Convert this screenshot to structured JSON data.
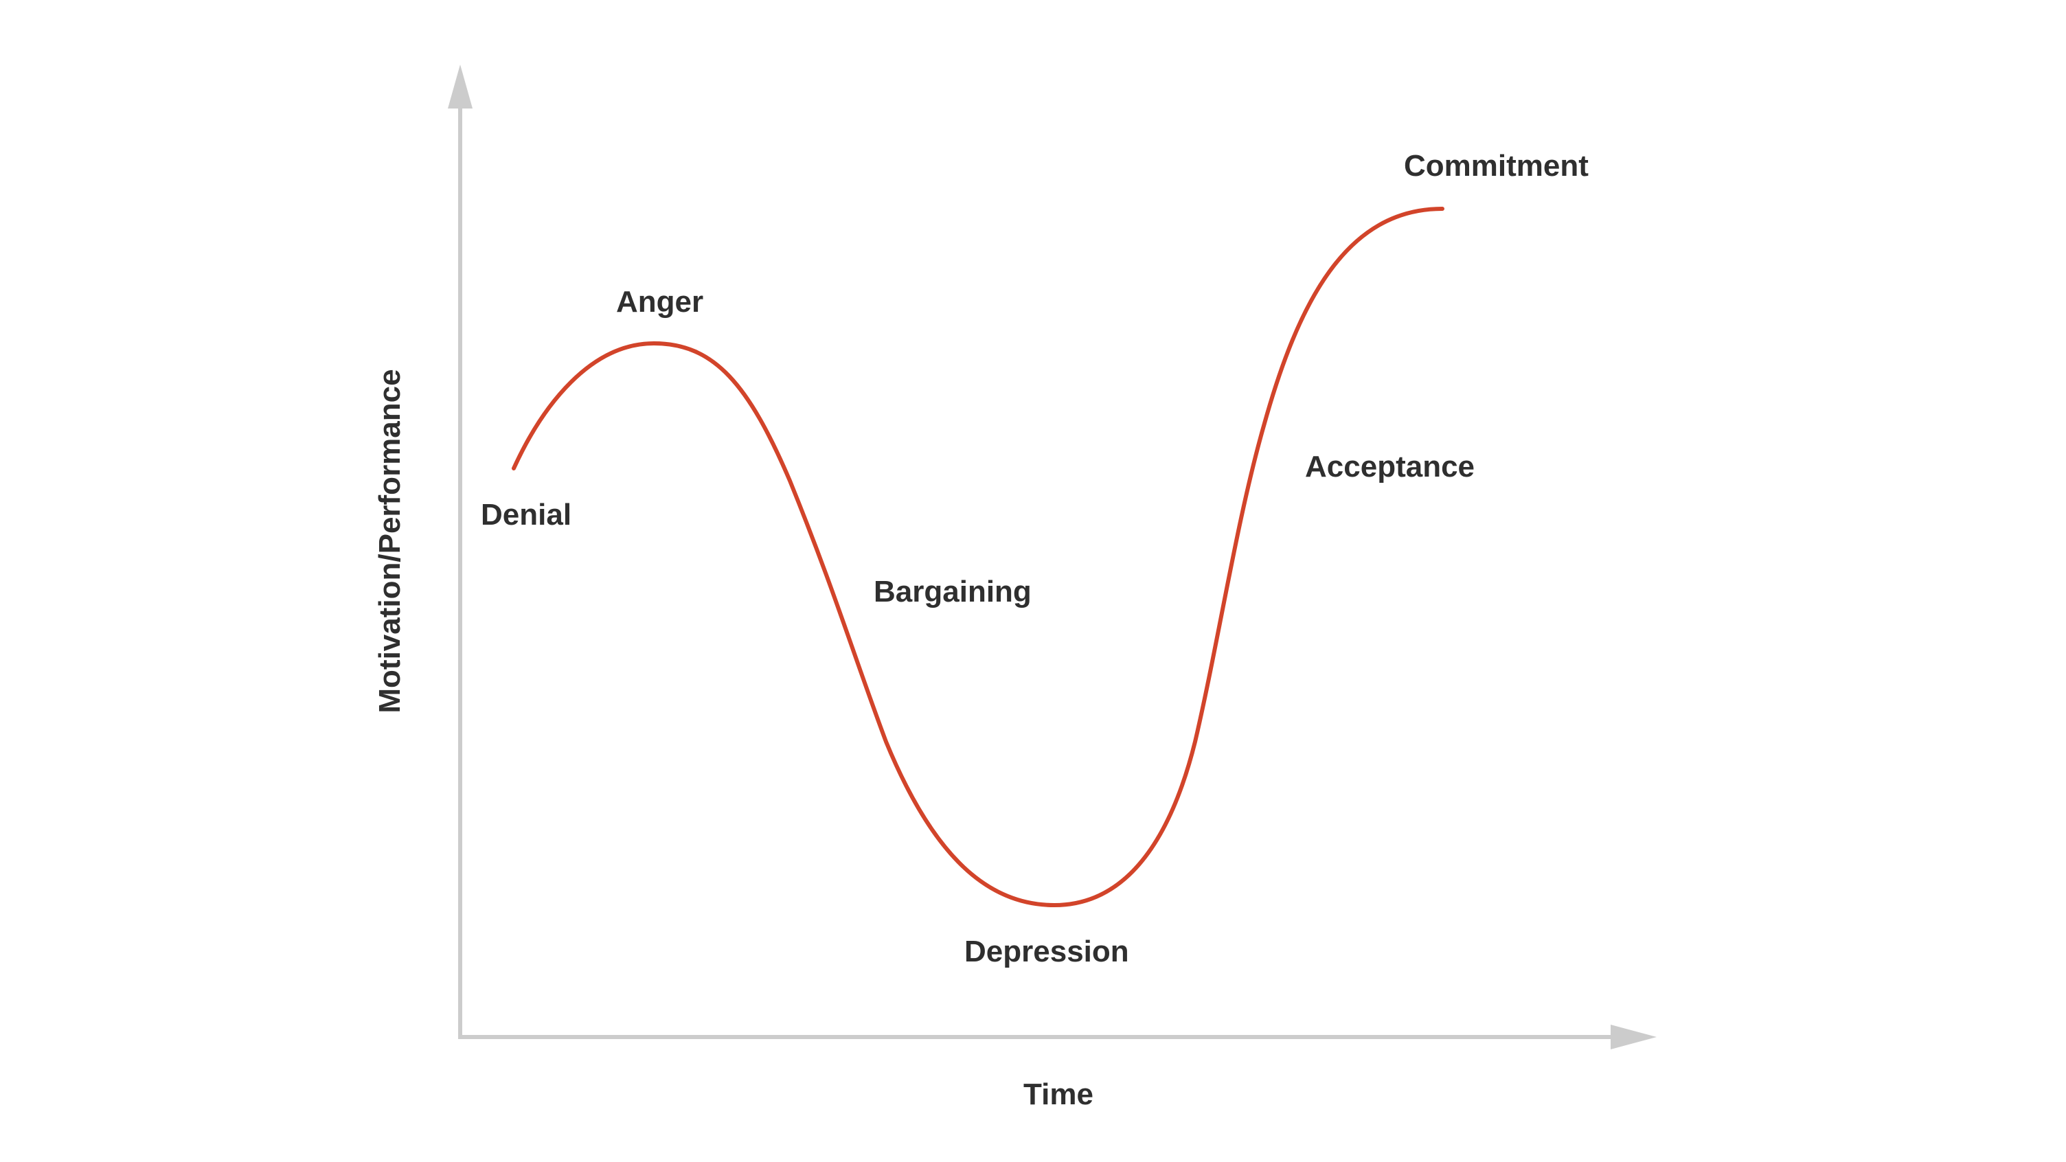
{
  "axes": {
    "x_label": "Time",
    "y_label": "Motivation/Performance",
    "axis_color": "#cccccc"
  },
  "curve": {
    "color": "#d2442a"
  },
  "stages": [
    {
      "label": "Denial"
    },
    {
      "label": "Anger"
    },
    {
      "label": "Bargaining"
    },
    {
      "label": "Depression"
    },
    {
      "label": "Acceptance"
    },
    {
      "label": "Commitment"
    }
  ]
}
